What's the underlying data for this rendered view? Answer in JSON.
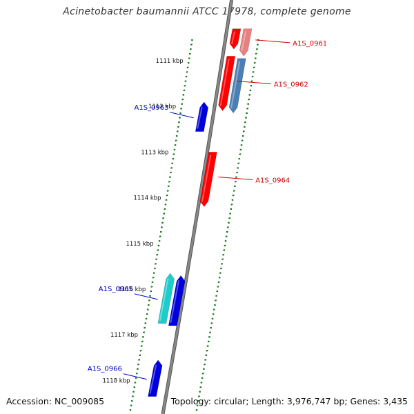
{
  "title": "Acinetobacter baumannii ATCC 17978, complete genome",
  "footer": {
    "accession": "Accession: NC_009085",
    "topology": "Topology: circular; Length: 3,976,747 bp; Genes: 3,435"
  },
  "colors": {
    "backbone": "#888888",
    "tick": "#1a7a1a",
    "forward_cds": "#ff0000",
    "reverse_cds": "#0000dd",
    "rna_gene": "#1fcccc",
    "pseudo_forward": "#e88080",
    "steelblue_feature": "#4a7fb5",
    "label_forward": "#cc0000",
    "label_reverse": "#0000cc"
  },
  "ticks": [
    {
      "label": "1111 kbp",
      "kbp": 1111
    },
    {
      "label": "1112 kbp",
      "kbp": 1112
    },
    {
      "label": "1113 kbp",
      "kbp": 1113
    },
    {
      "label": "1114 kbp",
      "kbp": 1114
    },
    {
      "label": "1115 kbp",
      "kbp": 1115
    },
    {
      "label": "1116 kbp",
      "kbp": 1116
    },
    {
      "label": "1117 kbp",
      "kbp": 1117
    },
    {
      "label": "1118 kbp",
      "kbp": 1118
    }
  ],
  "genes": [
    {
      "id": "A1S_0961",
      "label": "A1S_0961",
      "strand": "forward",
      "color_key": "pseudo_forward",
      "start_kbp": 1110.3,
      "end_kbp": 1110.85,
      "labeled": true
    },
    {
      "id": "fwd_top",
      "label": "",
      "strand": "forward",
      "color_key": "forward_cds",
      "start_kbp": 1110.3,
      "end_kbp": 1110.7,
      "labeled": false
    },
    {
      "id": "A1S_0962",
      "label": "A1S_0962",
      "strand": "forward",
      "color_key": "forward_cds",
      "start_kbp": 1110.9,
      "end_kbp": 1112.05,
      "labeled": true
    },
    {
      "id": "blue_fwd",
      "label": "",
      "strand": "forward",
      "color_key": "steelblue_feature",
      "start_kbp": 1110.95,
      "end_kbp": 1112.1,
      "labeled": false
    },
    {
      "id": "A1S_0963",
      "label": "A1S_0963",
      "strand": "reverse",
      "color_key": "reverse_cds",
      "start_kbp": 1111.95,
      "end_kbp": 1112.55,
      "labeled": true
    },
    {
      "id": "A1S_0964",
      "label": "A1S_0964",
      "strand": "forward",
      "color_key": "forward_cds",
      "start_kbp": 1113.0,
      "end_kbp": 1114.15,
      "labeled": true
    },
    {
      "id": "A1S_0965",
      "label": "A1S_0965",
      "strand": "reverse",
      "color_key": "rna_gene",
      "start_kbp": 1115.7,
      "end_kbp": 1116.75,
      "labeled": true
    },
    {
      "id": "rev_blue_2",
      "label": "",
      "strand": "reverse",
      "color_key": "reverse_cds",
      "start_kbp": 1115.75,
      "end_kbp": 1116.8,
      "labeled": false
    },
    {
      "id": "A1S_0966",
      "label": "A1S_0966",
      "strand": "reverse",
      "color_key": "reverse_cds",
      "start_kbp": 1117.6,
      "end_kbp": 1118.35,
      "labeled": true
    }
  ]
}
